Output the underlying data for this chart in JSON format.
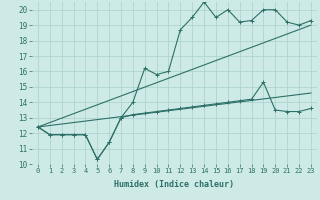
{
  "xlabel": "Humidex (Indice chaleur)",
  "ylabel": "",
  "bg_color": "#ceeae7",
  "line_color": "#2d7068",
  "grid_color": "#aed4d0",
  "xlim": [
    -0.5,
    23.5
  ],
  "ylim": [
    10,
    20.5
  ],
  "xticks": [
    0,
    1,
    2,
    3,
    4,
    5,
    6,
    7,
    8,
    9,
    10,
    11,
    12,
    13,
    14,
    15,
    16,
    17,
    18,
    19,
    20,
    21,
    22,
    23
  ],
  "yticks": [
    10,
    11,
    12,
    13,
    14,
    15,
    16,
    17,
    18,
    19,
    20
  ],
  "line1_x": [
    0,
    1,
    2,
    3,
    4,
    5,
    6,
    7,
    8,
    9,
    10,
    11,
    12,
    13,
    14,
    15,
    16,
    17,
    18,
    19,
    20,
    21,
    22,
    23
  ],
  "line1_y": [
    12.4,
    11.9,
    11.9,
    11.9,
    11.9,
    10.3,
    11.4,
    13.0,
    14.0,
    16.2,
    15.8,
    16.0,
    18.7,
    19.5,
    20.5,
    19.5,
    20.0,
    19.2,
    19.3,
    20.0,
    20.0,
    19.2,
    19.0,
    19.3
  ],
  "line2_x": [
    0,
    23
  ],
  "line2_y": [
    12.4,
    19.0
  ],
  "line3_x": [
    0,
    23
  ],
  "line3_y": [
    12.4,
    14.6
  ],
  "line4_x": [
    0,
    1,
    2,
    3,
    4,
    5,
    6,
    7,
    8,
    9,
    10,
    11,
    12,
    13,
    14,
    15,
    16,
    17,
    18,
    19,
    20,
    21,
    22,
    23
  ],
  "line4_y": [
    12.4,
    11.9,
    11.9,
    11.9,
    11.9,
    10.3,
    11.4,
    13.0,
    13.2,
    13.3,
    13.4,
    13.5,
    13.6,
    13.7,
    13.8,
    13.9,
    14.0,
    14.1,
    14.2,
    15.3,
    13.5,
    13.4,
    13.4,
    13.6
  ]
}
